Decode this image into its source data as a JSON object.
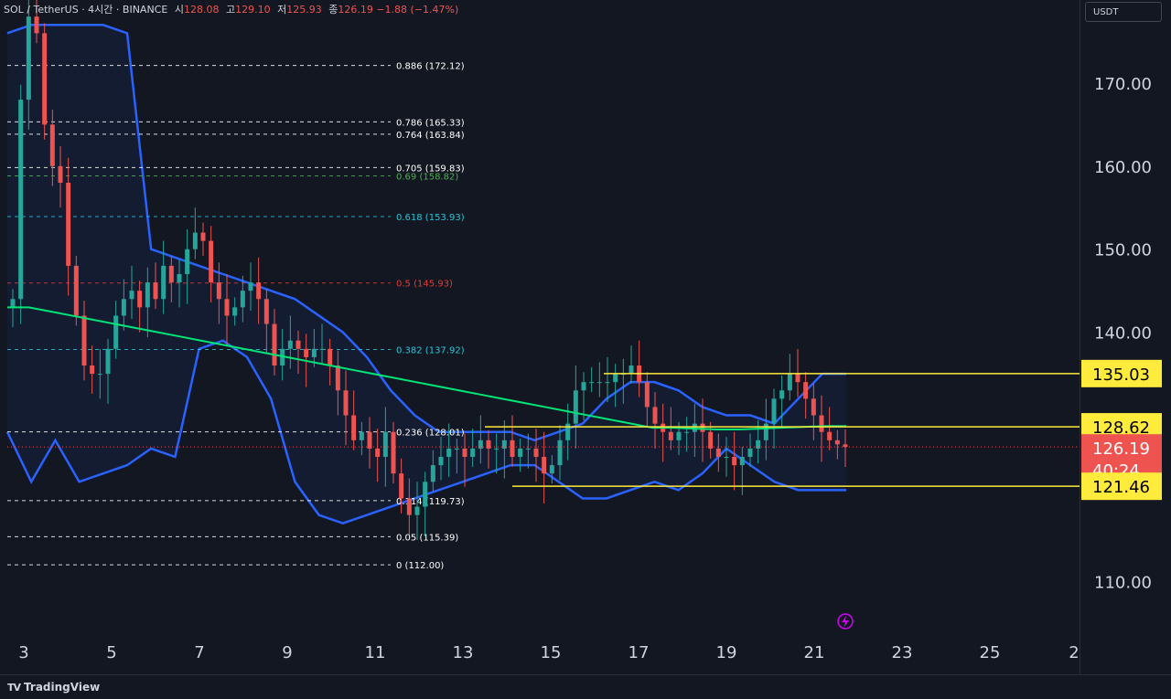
{
  "header": {
    "symbol": "SOL / TetherUS · 4시간 · BINANCE",
    "open_label": "시",
    "open": "128.08",
    "high_label": "고",
    "high": "129.10",
    "low_label": "저",
    "low": "125.93",
    "close_label": "종",
    "close": "126.19",
    "change": "−1.88 (−1.47%)"
  },
  "currency": "USDT",
  "brand": {
    "name": "TradingView",
    "icon": "tradingview-logo-icon"
  },
  "colors": {
    "bg": "#131722",
    "up": "#26a69a",
    "down": "#ef5350",
    "band": "#2962ff",
    "ma": "#00e676",
    "hline": "#ffeb3b"
  },
  "chart_data": {
    "type": "candlestick",
    "y_axis": {
      "min": 103,
      "max": 180,
      "ticks": [
        "110.00",
        "140.00",
        "150.00",
        "160.00",
        "170.00"
      ]
    },
    "x_axis": {
      "labels": [
        "3",
        "5",
        "7",
        "9",
        "11",
        "13",
        "15",
        "17",
        "19",
        "21",
        "23",
        "25",
        "2"
      ]
    },
    "price_tags": [
      {
        "text": "135.03",
        "value": 135.03,
        "style": "yellow"
      },
      {
        "text": "128.62",
        "value": 128.62,
        "style": "yellow"
      },
      {
        "text": "126.19",
        "value": 126.19,
        "style": "red",
        "sub": "40:24"
      },
      {
        "text": "121.46",
        "value": 121.46,
        "style": "yellow"
      }
    ],
    "fib_levels": [
      {
        "label": "0.886 (172.12)",
        "value": 172.12,
        "color": "#ffffff"
      },
      {
        "label": "0.786 (165.33)",
        "value": 165.33,
        "color": "#ffffff"
      },
      {
        "label": "0.764 (163.84)",
        "value": 163.84,
        "color": "#ffffff"
      },
      {
        "label": "0.705 (159.83)",
        "value": 159.83,
        "color": "#ffffff"
      },
      {
        "label": "0.69 (158.82)",
        "value": 158.82,
        "color": "#4caf50"
      },
      {
        "label": "0.618 (153.93)",
        "value": 153.93,
        "color": "#26c6da"
      },
      {
        "label": "0.5 (145.93)",
        "value": 145.93,
        "color": "#e53935"
      },
      {
        "label": "0.382 (137.92)",
        "value": 137.92,
        "color": "#26c6da"
      },
      {
        "label": "0.236 (128.01)",
        "value": 128.01,
        "color": "#ffffff"
      },
      {
        "label": "0.114 (119.73)",
        "value": 119.73,
        "color": "#ffffff"
      },
      {
        "label": "0.05 (115.39)",
        "value": 115.39,
        "color": "#ffffff"
      },
      {
        "label": "0 (112.00)",
        "value": 112.0,
        "color": "#ffffff"
      }
    ],
    "horizontal_lines": [
      135.03,
      128.62,
      121.46
    ],
    "last_price": 126.19,
    "closes": [
      144,
      168,
      178,
      176,
      165,
      160,
      158,
      148,
      142,
      136,
      135,
      135,
      138,
      142,
      144,
      145,
      143,
      146,
      144,
      148,
      146,
      147,
      150,
      152,
      151,
      146,
      144,
      142,
      143,
      145,
      146,
      144,
      141,
      136,
      138,
      139,
      138,
      137,
      138,
      138,
      136,
      133,
      130,
      127,
      128,
      126,
      125,
      128,
      123,
      120,
      118,
      119,
      122,
      124,
      125,
      126,
      126,
      125,
      126,
      127,
      126,
      126,
      127,
      125,
      126,
      126,
      125,
      123,
      124,
      127,
      129,
      133,
      134,
      134,
      134,
      134,
      135,
      135,
      136,
      134,
      131,
      129,
      128,
      127,
      128,
      128,
      129,
      128,
      126,
      125,
      125,
      124,
      125,
      126,
      127,
      129,
      132,
      133,
      135,
      134,
      132,
      130,
      128,
      127,
      126.5,
      126.19
    ],
    "ma": [
      143,
      143,
      142.5,
      142,
      141.5,
      141,
      140.5,
      140,
      139.5,
      139,
      138.5,
      138,
      137.5,
      137,
      136.5,
      136,
      135.5,
      135,
      134.5,
      134,
      133.5,
      133,
      132.5,
      132,
      131.5,
      131,
      130.5,
      130,
      129.5,
      129,
      128.5,
      128.5,
      128.4,
      128.3,
      128.3,
      128.4,
      128.5,
      128.6,
      128.7,
      128.7
    ],
    "bb_upper": [
      176,
      177,
      177,
      177,
      177,
      176,
      150,
      149,
      148,
      147,
      146,
      145,
      144,
      142,
      140,
      137,
      133,
      130,
      128,
      128,
      128,
      128,
      127,
      128,
      129,
      132,
      134,
      134,
      133,
      131,
      130,
      130,
      129,
      132,
      135,
      135
    ],
    "bb_lower": [
      128,
      122,
      127,
      122,
      123,
      124,
      126,
      125,
      138,
      139,
      137,
      132,
      122,
      118,
      117,
      118,
      119,
      120,
      121,
      122,
      123,
      124,
      124,
      122,
      120,
      120,
      121,
      122,
      121,
      123,
      126,
      124,
      122,
      121,
      121,
      121
    ]
  }
}
